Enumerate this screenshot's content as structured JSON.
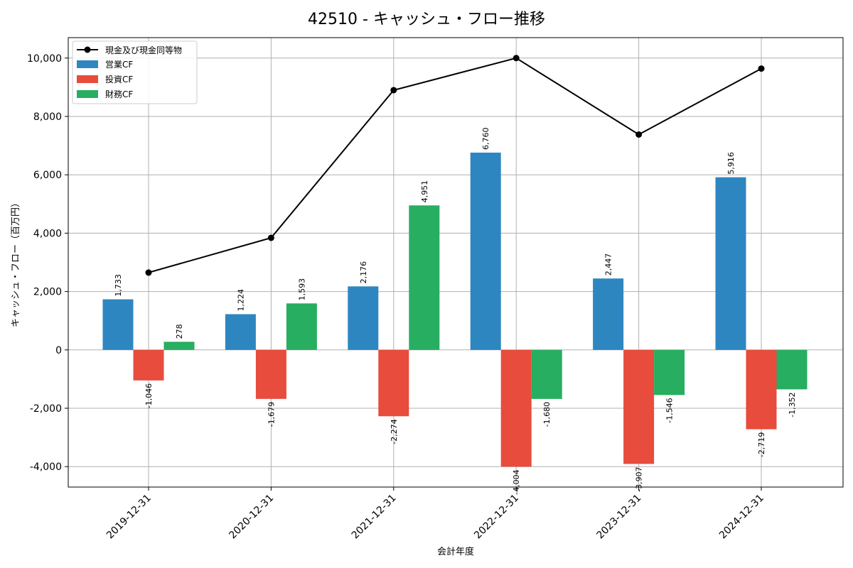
{
  "chart_data": {
    "type": "bar",
    "title": "42510 - キャッシュ・フロー推移",
    "xlabel": "会計年度",
    "ylabel": "キャッシュ・フロー（百万円）",
    "categories": [
      "2019-12-31",
      "2020-12-31",
      "2021-12-31",
      "2022-12-31",
      "2023-12-31",
      "2024-12-31"
    ],
    "ylim": [
      -4700,
      10700
    ],
    "yticks": [
      -4000,
      -2000,
      0,
      2000,
      4000,
      6000,
      8000,
      10000
    ],
    "ytick_labels": [
      "-4,000",
      "-2,000",
      "0",
      "2,000",
      "4,000",
      "6,000",
      "8,000",
      "10,000"
    ],
    "grid": true,
    "legend_position": "top-left",
    "series": [
      {
        "name": "営業CF",
        "kind": "bar",
        "color": "#2e86c1",
        "values": [
          1733,
          1224,
          2176,
          6760,
          2447,
          5916
        ],
        "labels": [
          "1,733",
          "1,224",
          "2,176",
          "6,760",
          "2,447",
          "5,916"
        ]
      },
      {
        "name": "投資CF",
        "kind": "bar",
        "color": "#e74c3c",
        "values": [
          -1046,
          -1679,
          -2274,
          -4004,
          -3907,
          -2719
        ],
        "labels": [
          "-1,046",
          "-1,679",
          "-2,274",
          "-4,004",
          "-3,907",
          "-2,719"
        ]
      },
      {
        "name": "財務CF",
        "kind": "bar",
        "color": "#27ae60",
        "values": [
          278,
          1593,
          4951,
          -1680,
          -1546,
          -1352
        ],
        "labels": [
          "278",
          "1,593",
          "4,951",
          "-1,680",
          "-1,546",
          "-1,352"
        ]
      }
    ],
    "line": {
      "name": "現金及び現金同等物",
      "color": "#000000",
      "values": [
        2650,
        3840,
        8900,
        10000,
        7380,
        9640
      ]
    }
  }
}
